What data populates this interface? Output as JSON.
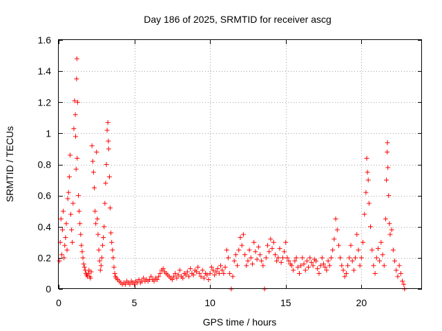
{
  "chart_data": {
    "type": "scatter",
    "title": "Day 186 of 2025, SRMTID for receiver ascg",
    "xlabel": "GPS time / hours",
    "ylabel": "SRMTID / TECUs",
    "xlim": [
      0,
      24
    ],
    "ylim": [
      0,
      1.6
    ],
    "xticks": [
      {
        "value": 0,
        "label": "0"
      },
      {
        "value": 5,
        "label": "5"
      },
      {
        "value": 10,
        "label": "10"
      },
      {
        "value": 15,
        "label": "15"
      },
      {
        "value": 20,
        "label": "20"
      }
    ],
    "yticks": [
      {
        "value": 0,
        "label": "0"
      },
      {
        "value": 0.2,
        "label": "0.2"
      },
      {
        "value": 0.4,
        "label": "0.4"
      },
      {
        "value": 0.6,
        "label": "0.6"
      },
      {
        "value": 0.8,
        "label": "0.8"
      },
      {
        "value": 1.0,
        "label": "1"
      },
      {
        "value": 1.2,
        "label": "1.2"
      },
      {
        "value": 1.4,
        "label": "1.4"
      },
      {
        "value": 1.6,
        "label": "1.6"
      }
    ],
    "grid": true,
    "color": "#ff0000",
    "series": [
      {
        "name": "SRMTID",
        "marker": "plus",
        "points": [
          [
            0.05,
            0.18
          ],
          [
            0.1,
            0.3
          ],
          [
            0.15,
            0.45
          ],
          [
            0.2,
            0.22
          ],
          [
            0.25,
            0.38
          ],
          [
            0.3,
            0.5
          ],
          [
            0.35,
            0.2
          ],
          [
            0.4,
            0.28
          ],
          [
            0.45,
            0.33
          ],
          [
            0.5,
            0.42
          ],
          [
            0.55,
            0.25
          ],
          [
            0.6,
            0.58
          ],
          [
            0.65,
            0.62
          ],
          [
            0.7,
            0.72
          ],
          [
            0.75,
            0.86
          ],
          [
            0.8,
            0.48
          ],
          [
            0.85,
            0.38
          ],
          [
            0.9,
            0.3
          ],
          [
            0.95,
            0.55
          ],
          [
            1.0,
            1.03
          ],
          [
            1.05,
            1.21
          ],
          [
            1.1,
            1.12
          ],
          [
            1.12,
            0.98
          ],
          [
            1.15,
            0.77
          ],
          [
            1.18,
            1.35
          ],
          [
            1.2,
            1.48
          ],
          [
            1.22,
            0.84
          ],
          [
            1.25,
            1.2
          ],
          [
            1.3,
            0.6
          ],
          [
            1.35,
            0.5
          ],
          [
            1.4,
            0.42
          ],
          [
            1.45,
            0.35
          ],
          [
            1.5,
            0.28
          ],
          [
            1.55,
            0.24
          ],
          [
            1.6,
            0.2
          ],
          [
            1.65,
            0.16
          ],
          [
            1.7,
            0.14
          ],
          [
            1.75,
            0.12
          ],
          [
            1.8,
            0.1
          ],
          [
            1.85,
            0.09
          ],
          [
            1.9,
            0.08
          ],
          [
            1.95,
            0.1
          ],
          [
            2.0,
            0.12
          ],
          [
            2.05,
            0.08
          ],
          [
            2.1,
            0.07
          ],
          [
            2.15,
            0.11
          ],
          [
            2.2,
            0.92
          ],
          [
            2.25,
            0.82
          ],
          [
            2.3,
            0.75
          ],
          [
            2.35,
            0.65
          ],
          [
            2.4,
            0.5
          ],
          [
            2.45,
            0.42
          ],
          [
            2.5,
            0.88
          ],
          [
            2.55,
            0.45
          ],
          [
            2.6,
            0.35
          ],
          [
            2.65,
            0.25
          ],
          [
            2.7,
            0.18
          ],
          [
            2.75,
            0.12
          ],
          [
            2.8,
            0.15
          ],
          [
            2.85,
            0.2
          ],
          [
            2.9,
            0.28
          ],
          [
            2.95,
            0.33
          ],
          [
            3.0,
            0.4
          ],
          [
            3.05,
            0.55
          ],
          [
            3.1,
            0.68
          ],
          [
            3.15,
            0.8
          ],
          [
            3.2,
            1.02
          ],
          [
            3.25,
            1.07
          ],
          [
            3.28,
            0.95
          ],
          [
            3.3,
            0.9
          ],
          [
            3.35,
            0.72
          ],
          [
            3.4,
            0.52
          ],
          [
            3.45,
            0.36
          ],
          [
            3.5,
            0.3
          ],
          [
            3.55,
            0.25
          ],
          [
            3.6,
            0.2
          ],
          [
            3.65,
            0.14
          ],
          [
            3.7,
            0.1
          ],
          [
            3.75,
            0.08
          ],
          [
            3.8,
            0.07
          ],
          [
            3.9,
            0.06
          ],
          [
            4.0,
            0.05
          ],
          [
            4.1,
            0.04
          ],
          [
            4.2,
            0.03
          ],
          [
            4.3,
            0.04
          ],
          [
            4.4,
            0.03
          ],
          [
            4.5,
            0.05
          ],
          [
            4.6,
            0.04
          ],
          [
            4.7,
            0.03
          ],
          [
            4.8,
            0.05
          ],
          [
            4.9,
            0.04
          ],
          [
            5.0,
            0.03
          ],
          [
            5.1,
            0.05
          ],
          [
            5.2,
            0.04
          ],
          [
            5.3,
            0.06
          ],
          [
            5.4,
            0.04
          ],
          [
            5.5,
            0.05
          ],
          [
            5.6,
            0.07
          ],
          [
            5.7,
            0.05
          ],
          [
            5.8,
            0.06
          ],
          [
            5.9,
            0.05
          ],
          [
            6.0,
            0.06
          ],
          [
            6.1,
            0.08
          ],
          [
            6.2,
            0.06
          ],
          [
            6.3,
            0.05
          ],
          [
            6.4,
            0.07
          ],
          [
            6.5,
            0.06
          ],
          [
            6.6,
            0.08
          ],
          [
            6.7,
            0.1
          ],
          [
            6.8,
            0.12
          ],
          [
            6.9,
            0.13
          ],
          [
            7.0,
            0.11
          ],
          [
            7.1,
            0.1
          ],
          [
            7.2,
            0.09
          ],
          [
            7.3,
            0.08
          ],
          [
            7.4,
            0.07
          ],
          [
            7.5,
            0.06
          ],
          [
            7.6,
            0.08
          ],
          [
            7.7,
            0.1
          ],
          [
            7.8,
            0.07
          ],
          [
            7.9,
            0.09
          ],
          [
            8.0,
            0.12
          ],
          [
            8.1,
            0.08
          ],
          [
            8.2,
            0.07
          ],
          [
            8.3,
            0.1
          ],
          [
            8.4,
            0.09
          ],
          [
            8.5,
            0.11
          ],
          [
            8.6,
            0.08
          ],
          [
            8.7,
            0.13
          ],
          [
            8.8,
            0.1
          ],
          [
            8.9,
            0.09
          ],
          [
            9.0,
            0.12
          ],
          [
            9.1,
            0.11
          ],
          [
            9.2,
            0.14
          ],
          [
            9.3,
            0.1
          ],
          [
            9.4,
            0.08
          ],
          [
            9.5,
            0.12
          ],
          [
            9.6,
            0.07
          ],
          [
            9.7,
            0.1
          ],
          [
            9.8,
            0.09
          ],
          [
            9.9,
            0.06
          ],
          [
            10.0,
            0.1
          ],
          [
            10.1,
            0.14
          ],
          [
            10.2,
            0.12
          ],
          [
            10.3,
            0.09
          ],
          [
            10.4,
            0.11
          ],
          [
            10.5,
            0.13
          ],
          [
            10.6,
            0.1
          ],
          [
            10.7,
            0.15
          ],
          [
            10.8,
            0.12
          ],
          [
            10.9,
            0.1
          ],
          [
            11.0,
            0.14
          ],
          [
            11.1,
            0.25
          ],
          [
            11.2,
            0.2
          ],
          [
            11.3,
            0.1
          ],
          [
            11.4,
            0.0
          ],
          [
            11.5,
            0.08
          ],
          [
            11.6,
            0.18
          ],
          [
            11.7,
            0.22
          ],
          [
            11.8,
            0.15
          ],
          [
            11.9,
            0.25
          ],
          [
            12.0,
            0.33
          ],
          [
            12.1,
            0.28
          ],
          [
            12.2,
            0.35
          ],
          [
            12.3,
            0.22
          ],
          [
            12.4,
            0.15
          ],
          [
            12.5,
            0.18
          ],
          [
            12.6,
            0.25
          ],
          [
            12.7,
            0.2
          ],
          [
            12.8,
            0.16
          ],
          [
            12.9,
            0.3
          ],
          [
            13.0,
            0.24
          ],
          [
            13.1,
            0.19
          ],
          [
            13.2,
            0.27
          ],
          [
            13.3,
            0.22
          ],
          [
            13.4,
            0.18
          ],
          [
            13.5,
            0.15
          ],
          [
            13.6,
            0.0
          ],
          [
            13.7,
            0.2
          ],
          [
            13.8,
            0.28
          ],
          [
            13.9,
            0.24
          ],
          [
            14.0,
            0.32
          ],
          [
            14.1,
            0.26
          ],
          [
            14.2,
            0.3
          ],
          [
            14.3,
            0.22
          ],
          [
            14.4,
            0.18
          ],
          [
            14.5,
            0.2
          ],
          [
            14.6,
            0.26
          ],
          [
            14.7,
            0.17
          ],
          [
            14.8,
            0.2
          ],
          [
            14.9,
            0.24
          ],
          [
            15.0,
            0.3
          ],
          [
            15.1,
            0.2
          ],
          [
            15.2,
            0.18
          ],
          [
            15.3,
            0.16
          ],
          [
            15.4,
            0.15
          ],
          [
            15.5,
            0.12
          ],
          [
            15.6,
            0.18
          ],
          [
            15.7,
            0.2
          ],
          [
            15.8,
            0.14
          ],
          [
            15.9,
            0.1
          ],
          [
            16.0,
            0.15
          ],
          [
            16.1,
            0.2
          ],
          [
            16.2,
            0.16
          ],
          [
            16.3,
            0.12
          ],
          [
            16.4,
            0.18
          ],
          [
            16.5,
            0.14
          ],
          [
            16.6,
            0.2
          ],
          [
            16.7,
            0.17
          ],
          [
            16.8,
            0.15
          ],
          [
            16.9,
            0.19
          ],
          [
            17.0,
            0.18
          ],
          [
            17.1,
            0.13
          ],
          [
            17.2,
            0.1
          ],
          [
            17.3,
            0.15
          ],
          [
            17.4,
            0.2
          ],
          [
            17.5,
            0.16
          ],
          [
            17.6,
            0.14
          ],
          [
            17.7,
            0.12
          ],
          [
            17.8,
            0.18
          ],
          [
            17.9,
            0.15
          ],
          [
            18.0,
            0.2
          ],
          [
            18.1,
            0.25
          ],
          [
            18.2,
            0.32
          ],
          [
            18.3,
            0.45
          ],
          [
            18.4,
            0.38
          ],
          [
            18.5,
            0.28
          ],
          [
            18.6,
            0.2
          ],
          [
            18.7,
            0.15
          ],
          [
            18.8,
            0.12
          ],
          [
            18.9,
            0.08
          ],
          [
            19.0,
            0.1
          ],
          [
            19.1,
            0.15
          ],
          [
            19.2,
            0.2
          ],
          [
            19.3,
            0.28
          ],
          [
            19.4,
            0.18
          ],
          [
            19.5,
            0.12
          ],
          [
            19.6,
            0.2
          ],
          [
            19.7,
            0.35
          ],
          [
            19.8,
            0.25
          ],
          [
            19.9,
            0.15
          ],
          [
            20.0,
            0.2
          ],
          [
            20.1,
            0.3
          ],
          [
            20.2,
            0.48
          ],
          [
            20.3,
            0.62
          ],
          [
            20.35,
            0.84
          ],
          [
            20.4,
            0.75
          ],
          [
            20.45,
            0.7
          ],
          [
            20.5,
            0.55
          ],
          [
            20.6,
            0.4
          ],
          [
            20.7,
            0.25
          ],
          [
            20.8,
            0.15
          ],
          [
            20.9,
            0.1
          ],
          [
            21.0,
            0.2
          ],
          [
            21.1,
            0.26
          ],
          [
            21.2,
            0.18
          ],
          [
            21.3,
            0.3
          ],
          [
            21.4,
            0.22
          ],
          [
            21.5,
            0.15
          ],
          [
            21.6,
            0.45
          ],
          [
            21.65,
            0.7
          ],
          [
            21.7,
            0.88
          ],
          [
            21.72,
            0.94
          ],
          [
            21.75,
            0.78
          ],
          [
            21.8,
            0.6
          ],
          [
            21.85,
            0.42
          ],
          [
            21.9,
            0.35
          ],
          [
            22.0,
            0.38
          ],
          [
            22.1,
            0.25
          ],
          [
            22.2,
            0.18
          ],
          [
            22.3,
            0.12
          ],
          [
            22.4,
            0.08
          ],
          [
            22.5,
            0.15
          ],
          [
            22.6,
            0.1
          ],
          [
            22.7,
            0.05
          ],
          [
            22.8,
            0.03
          ],
          [
            22.85,
            0.0
          ]
        ]
      }
    ]
  }
}
